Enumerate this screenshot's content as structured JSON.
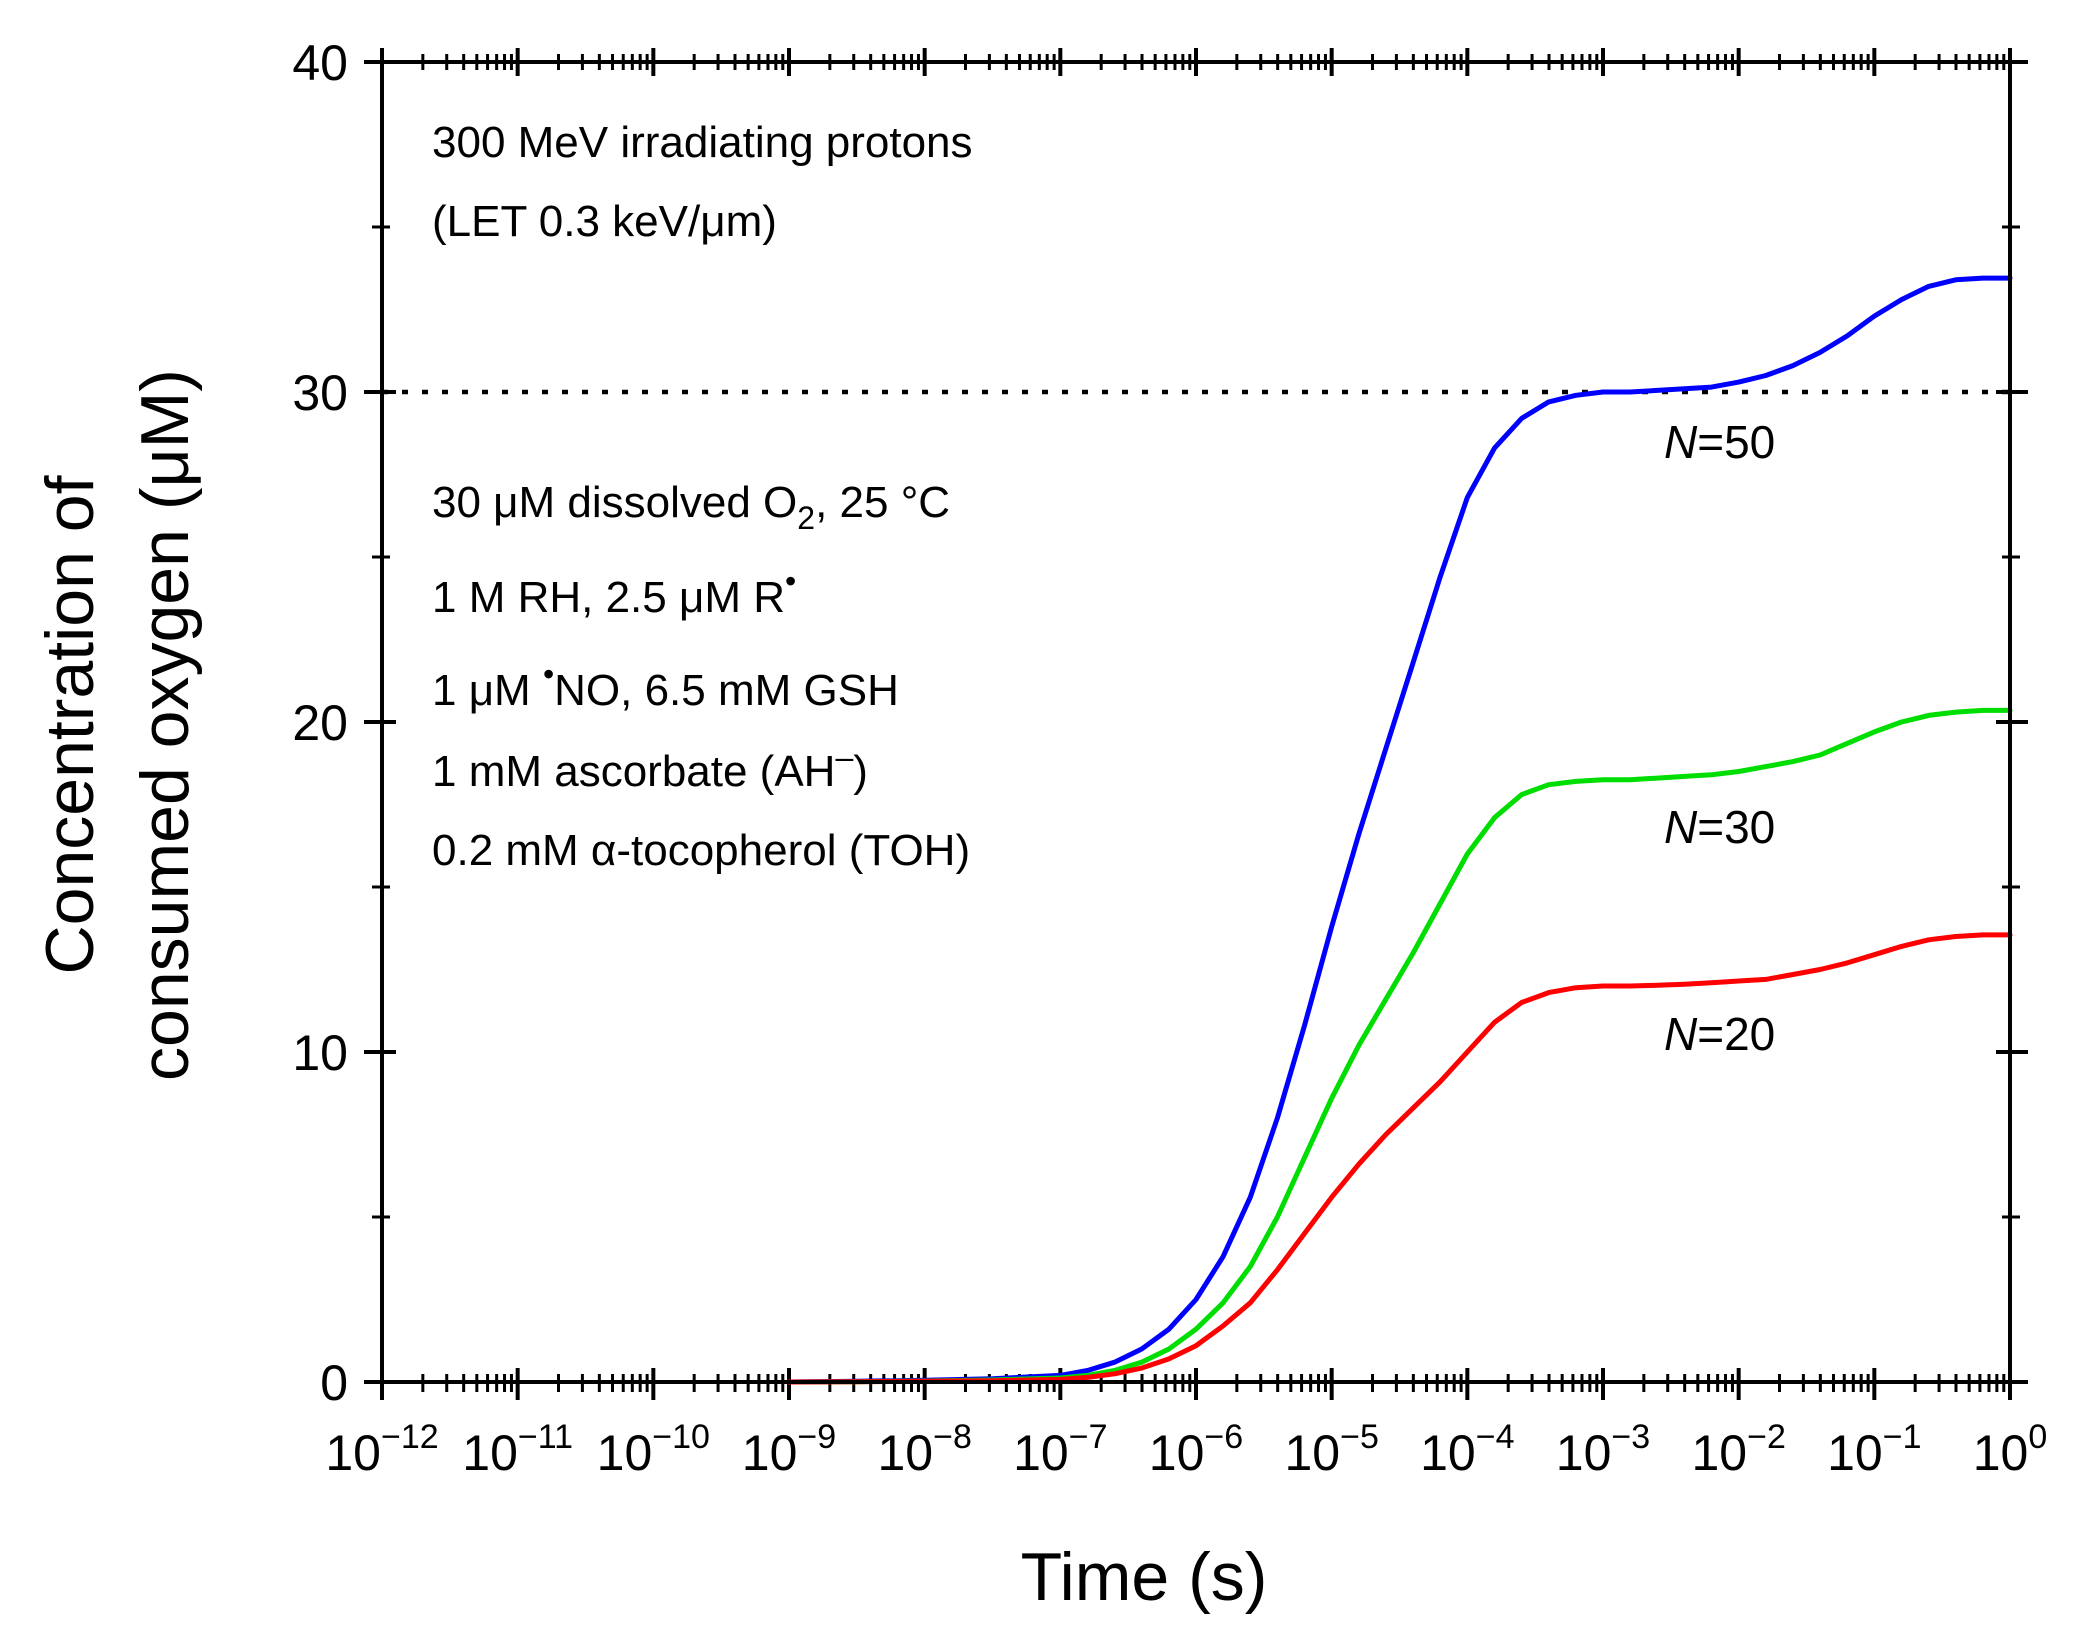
{
  "chart_data": {
    "type": "line",
    "x_scale": "log",
    "xlabel": "Time (s)",
    "ylabel_line1": "Concentration of",
    "ylabel_line2": "consumed oxygen (μM)",
    "xlim": [
      1e-12,
      1
    ],
    "ylim": [
      0,
      40
    ],
    "y_ticks": [
      0,
      10,
      20,
      30,
      40
    ],
    "x_tick_exponents": [
      -12,
      -11,
      -10,
      -9,
      -8,
      -7,
      -6,
      -5,
      -4,
      -3,
      -2,
      -1,
      0
    ],
    "x_tick_base": "10",
    "grid": false,
    "reference_line": {
      "y": 30,
      "style": "dotted",
      "color": "#000000"
    },
    "annotations": {
      "top_line1": "300 MeV irradiating protons",
      "top_line2": "(LET 0.3 keV/μm)",
      "cond1_pre": "30 μM dissolved O",
      "cond1_sub": "2",
      "cond1_post": ", 25 °C",
      "cond2_pre": "1 M RH, 2.5 μM R",
      "cond2_sup": "•",
      "cond3_pre": "1 μM ",
      "cond3_sup": "•",
      "cond3_post": "NO, 6.5 mM GSH",
      "cond4_pre": "1 mM ascorbate (AH",
      "cond4_sup": "–",
      "cond4_post": ")",
      "cond5": "0.2 mM α-tocopherol (TOH)"
    },
    "series": [
      {
        "name": "N=50",
        "label_italic": "N",
        "label_rest": "=50",
        "color": "#0000ff",
        "x_exp": [
          -9,
          -8.5,
          -8,
          -7.5,
          -7,
          -6.8,
          -6.6,
          -6.4,
          -6.2,
          -6,
          -5.8,
          -5.6,
          -5.4,
          -5.2,
          -5,
          -4.8,
          -4.6,
          -4.4,
          -4.2,
          -4,
          -3.8,
          -3.6,
          -3.4,
          -3.2,
          -3,
          -2.8,
          -2.6,
          -2.4,
          -2.2,
          -2,
          -1.8,
          -1.6,
          -1.4,
          -1.2,
          -1,
          -0.8,
          -0.6,
          -0.4,
          -0.2,
          0
        ],
        "y": [
          0,
          0.02,
          0.05,
          0.1,
          0.2,
          0.35,
          0.6,
          1.0,
          1.6,
          2.5,
          3.8,
          5.6,
          8.0,
          10.8,
          13.8,
          16.6,
          19.2,
          21.8,
          24.4,
          26.8,
          28.3,
          29.2,
          29.7,
          29.9,
          30.0,
          30.0,
          30.05,
          30.1,
          30.15,
          30.3,
          30.5,
          30.8,
          31.2,
          31.7,
          32.3,
          32.8,
          33.2,
          33.4,
          33.45,
          33.45
        ]
      },
      {
        "name": "N=30",
        "label_italic": "N",
        "label_rest": "=30",
        "color": "#00dd00",
        "x_exp": [
          -9,
          -8.5,
          -8,
          -7.5,
          -7,
          -6.8,
          -6.6,
          -6.4,
          -6.2,
          -6,
          -5.8,
          -5.6,
          -5.4,
          -5.2,
          -5,
          -4.8,
          -4.6,
          -4.4,
          -4.2,
          -4,
          -3.8,
          -3.6,
          -3.4,
          -3.2,
          -3,
          -2.8,
          -2.6,
          -2.4,
          -2.2,
          -2,
          -1.8,
          -1.6,
          -1.4,
          -1.2,
          -1,
          -0.8,
          -0.6,
          -0.4,
          -0.2,
          0
        ],
        "y": [
          0,
          0.01,
          0.03,
          0.06,
          0.12,
          0.2,
          0.35,
          0.6,
          1.0,
          1.6,
          2.4,
          3.5,
          5.0,
          6.8,
          8.6,
          10.2,
          11.6,
          13.0,
          14.5,
          16.0,
          17.1,
          17.8,
          18.1,
          18.2,
          18.25,
          18.25,
          18.3,
          18.35,
          18.4,
          18.5,
          18.65,
          18.8,
          19.0,
          19.35,
          19.7,
          20.0,
          20.2,
          20.3,
          20.35,
          20.35
        ]
      },
      {
        "name": "N=20",
        "label_italic": "N",
        "label_rest": "=20",
        "color": "#ff0000",
        "x_exp": [
          -9,
          -8.5,
          -8,
          -7.5,
          -7,
          -6.8,
          -6.6,
          -6.4,
          -6.2,
          -6,
          -5.8,
          -5.6,
          -5.4,
          -5.2,
          -5,
          -4.8,
          -4.6,
          -4.4,
          -4.2,
          -4,
          -3.8,
          -3.6,
          -3.4,
          -3.2,
          -3,
          -2.8,
          -2.6,
          -2.4,
          -2.2,
          -2,
          -1.8,
          -1.6,
          -1.4,
          -1.2,
          -1,
          -0.8,
          -0.6,
          -0.4,
          -0.2,
          0
        ],
        "y": [
          0,
          0.01,
          0.02,
          0.04,
          0.08,
          0.14,
          0.25,
          0.42,
          0.7,
          1.1,
          1.7,
          2.4,
          3.4,
          4.5,
          5.6,
          6.6,
          7.5,
          8.3,
          9.1,
          10.0,
          10.9,
          11.5,
          11.8,
          11.95,
          12.0,
          12.0,
          12.02,
          12.05,
          12.1,
          12.15,
          12.2,
          12.35,
          12.5,
          12.7,
          12.95,
          13.2,
          13.4,
          13.5,
          13.55,
          13.55
        ]
      }
    ]
  }
}
